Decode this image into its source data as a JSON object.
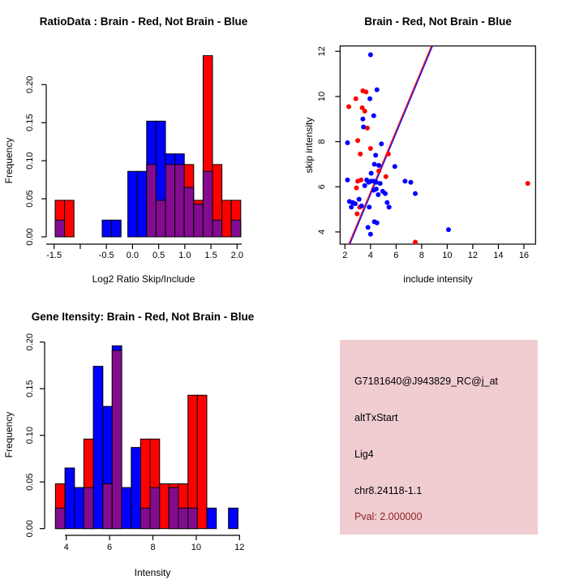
{
  "figure": {
    "background": "#ffffff"
  },
  "colors": {
    "brain_red": "#ff0000",
    "not_brain_blue": "#0000ff",
    "overlap_purple": "#830b8f",
    "axis_black": "#000000",
    "info_panel_pink": "#f1c6cb",
    "pval_dark_red": "#8b2323"
  },
  "chart_data": [
    {
      "id": "ratio_histogram",
      "type": "bar",
      "subtype": "overlaid-histogram",
      "title": "RatioData : Brain - Red, Not Brain - Blue",
      "xlabel": "Log2 Ratio Skip/Include",
      "ylabel": "Frequency",
      "xlim": [
        -1.6,
        2.1
      ],
      "ylim": [
        0,
        0.2
      ],
      "grid": false,
      "groups": [
        {
          "name": "Brain",
          "color": "#ff0000"
        },
        {
          "name": "Not Brain",
          "color": "#0000ff"
        },
        {
          "name": "Overlap",
          "color": "#830b8f"
        }
      ],
      "xticks": [
        {
          "v": -1.5,
          "t": "-1.5"
        },
        {
          "v": -1.0,
          "t": ""
        },
        {
          "v": -0.5,
          "t": "-0.5"
        },
        {
          "v": 0.0,
          "t": "0.0"
        },
        {
          "v": 0.5,
          "t": "0.5"
        },
        {
          "v": 1.0,
          "t": "1.0"
        },
        {
          "v": 1.5,
          "t": "1.5"
        },
        {
          "v": 2.0,
          "t": "2.0"
        }
      ],
      "yticks": [
        {
          "v": 0.0,
          "t": "0.00"
        },
        {
          "v": 0.05,
          "t": "0.05"
        },
        {
          "v": 0.1,
          "t": "0.10"
        },
        {
          "v": 0.15,
          "t": "0.15"
        },
        {
          "v": 0.2,
          "t": "0.20"
        }
      ],
      "bin_width": 0.18,
      "bars": [
        {
          "x": -1.48,
          "red": 0.048,
          "blue": 0.022
        },
        {
          "x": -1.3,
          "red": 0.048,
          "blue": 0
        },
        {
          "x": -0.58,
          "red": 0,
          "blue": 0.022
        },
        {
          "x": -0.4,
          "red": 0,
          "blue": 0.022
        },
        {
          "x": -0.09,
          "red": 0,
          "blue": 0.086
        },
        {
          "x": 0.09,
          "red": 0,
          "blue": 0.086
        },
        {
          "x": 0.27,
          "red": 0.095,
          "blue": 0.152
        },
        {
          "x": 0.45,
          "red": 0.048,
          "blue": 0.152
        },
        {
          "x": 0.63,
          "red": 0.095,
          "blue": 0.109
        },
        {
          "x": 0.81,
          "red": 0.095,
          "blue": 0.109
        },
        {
          "x": 0.99,
          "red": 0.095,
          "blue": 0.065
        },
        {
          "x": 1.17,
          "red": 0.048,
          "blue": 0.043
        },
        {
          "x": 1.35,
          "red": 0.238,
          "blue": 0.086
        },
        {
          "x": 1.53,
          "red": 0.095,
          "blue": 0.022
        },
        {
          "x": 1.71,
          "red": 0.048,
          "blue": 0
        },
        {
          "x": 1.89,
          "red": 0.048,
          "blue": 0.022
        }
      ]
    },
    {
      "id": "intensity_scatter",
      "type": "scatter",
      "title": "Brain - Red, Not Brain - Blue",
      "xlabel": "include intensity",
      "ylabel": "skip intensity",
      "xlim": [
        1.6,
        17.0
      ],
      "ylim": [
        3.45,
        12.25
      ],
      "grid": false,
      "xticks": [
        2,
        4,
        6,
        8,
        10,
        12,
        14,
        16
      ],
      "yticks": [
        4,
        6,
        8,
        10,
        12
      ],
      "series": [
        {
          "name": "Brain",
          "color": "#ff0000",
          "points": [
            [
              3.4,
              10.25
            ],
            [
              3.65,
              10.2
            ],
            [
              2.85,
              9.9
            ],
            [
              2.3,
              9.55
            ],
            [
              3.35,
              9.5
            ],
            [
              3.55,
              9.35
            ],
            [
              3.75,
              8.6
            ],
            [
              3.0,
              8.05
            ],
            [
              4.0,
              7.7
            ],
            [
              3.2,
              7.45
            ],
            [
              5.4,
              7.45
            ],
            [
              4.65,
              6.7
            ],
            [
              5.2,
              6.45
            ],
            [
              3.0,
              6.25
            ],
            [
              3.25,
              6.3
            ],
            [
              2.9,
              5.95
            ],
            [
              3.15,
              5.1
            ],
            [
              2.95,
              4.8
            ],
            [
              16.3,
              6.15
            ],
            [
              7.5,
              3.55
            ]
          ]
        },
        {
          "name": "Not Brain",
          "color": "#0000ff",
          "points": [
            [
              4.0,
              11.85
            ],
            [
              4.5,
              10.3
            ],
            [
              3.95,
              9.9
            ],
            [
              4.25,
              9.15
            ],
            [
              3.4,
              9.0
            ],
            [
              3.45,
              8.65
            ],
            [
              2.2,
              7.95
            ],
            [
              4.85,
              7.9
            ],
            [
              4.4,
              7.4
            ],
            [
              4.3,
              7.0
            ],
            [
              4.65,
              6.95
            ],
            [
              5.9,
              6.9
            ],
            [
              4.05,
              6.6
            ],
            [
              2.2,
              6.3
            ],
            [
              3.7,
              6.3
            ],
            [
              3.85,
              6.2
            ],
            [
              4.05,
              6.25
            ],
            [
              4.25,
              6.25
            ],
            [
              4.45,
              6.2
            ],
            [
              4.75,
              6.15
            ],
            [
              6.7,
              6.25
            ],
            [
              7.15,
              6.2
            ],
            [
              3.55,
              6.05
            ],
            [
              4.25,
              5.85
            ],
            [
              4.45,
              5.9
            ],
            [
              4.6,
              5.65
            ],
            [
              4.95,
              5.8
            ],
            [
              5.15,
              5.7
            ],
            [
              7.5,
              5.7
            ],
            [
              2.35,
              5.35
            ],
            [
              2.6,
              5.3
            ],
            [
              3.1,
              5.45
            ],
            [
              2.5,
              5.1
            ],
            [
              2.8,
              5.25
            ],
            [
              3.3,
              5.15
            ],
            [
              3.9,
              5.1
            ],
            [
              5.3,
              5.3
            ],
            [
              5.45,
              5.1
            ],
            [
              4.3,
              4.45
            ],
            [
              4.5,
              4.4
            ],
            [
              3.8,
              4.2
            ],
            [
              10.1,
              4.1
            ],
            [
              4.0,
              3.9
            ]
          ]
        }
      ],
      "fit_line": {
        "x1": 2.34,
        "y1": 3.46,
        "x2": 8.8,
        "y2": 12.23,
        "colors": [
          "#ff0000",
          "#0000ff"
        ]
      }
    },
    {
      "id": "gene_intensity_histogram",
      "type": "bar",
      "subtype": "overlaid-histogram",
      "title": "Gene Itensity: Brain - Red, Not Brain - Blue",
      "xlabel": "Intensity",
      "ylabel": "Frequency",
      "xlim": [
        3.4,
        12.1
      ],
      "ylim": [
        0,
        0.2
      ],
      "grid": false,
      "groups": [
        {
          "name": "Brain",
          "color": "#ff0000"
        },
        {
          "name": "Not Brain",
          "color": "#0000ff"
        },
        {
          "name": "Overlap",
          "color": "#830b8f"
        }
      ],
      "xticks": [
        {
          "v": 4,
          "t": "4"
        },
        {
          "v": 6,
          "t": "6"
        },
        {
          "v": 8,
          "t": "8"
        },
        {
          "v": 10,
          "t": "10"
        },
        {
          "v": 12,
          "t": "12"
        }
      ],
      "yticks": [
        {
          "v": 0.0,
          "t": "0.00"
        },
        {
          "v": 0.05,
          "t": "0.05"
        },
        {
          "v": 0.1,
          "t": "0.10"
        },
        {
          "v": 0.15,
          "t": "0.15"
        },
        {
          "v": 0.2,
          "t": "0.20"
        }
      ],
      "bin_width": 0.44,
      "bars": [
        {
          "x": 3.5,
          "red": 0.048,
          "blue": 0.022
        },
        {
          "x": 3.94,
          "red": 0,
          "blue": 0.065
        },
        {
          "x": 4.37,
          "red": 0,
          "blue": 0.044
        },
        {
          "x": 4.81,
          "red": 0.096,
          "blue": 0.044
        },
        {
          "x": 5.25,
          "red": 0,
          "blue": 0.174
        },
        {
          "x": 5.69,
          "red": 0.048,
          "blue": 0.131
        },
        {
          "x": 6.12,
          "red": 0.191,
          "blue": 0.196
        },
        {
          "x": 6.56,
          "red": 0,
          "blue": 0.044
        },
        {
          "x": 7.0,
          "red": 0,
          "blue": 0.087
        },
        {
          "x": 7.43,
          "red": 0.096,
          "blue": 0.022
        },
        {
          "x": 7.87,
          "red": 0.096,
          "blue": 0.044
        },
        {
          "x": 8.31,
          "red": 0.048,
          "blue": 0
        },
        {
          "x": 8.74,
          "red": 0.048,
          "blue": 0.044
        },
        {
          "x": 9.18,
          "red": 0.048,
          "blue": 0.022
        },
        {
          "x": 9.62,
          "red": 0.143,
          "blue": 0.022
        },
        {
          "x": 10.05,
          "red": 0.143,
          "blue": 0
        },
        {
          "x": 10.49,
          "red": 0,
          "blue": 0.022
        },
        {
          "x": 11.49,
          "red": 0,
          "blue": 0.022
        }
      ]
    }
  ],
  "info_panel": {
    "bg": "#f1c6cb",
    "lines": [
      {
        "text": "G7181640@J943829_RC@j_at",
        "color": "#000000"
      },
      {
        "text": "altTxStart",
        "color": "#000000"
      },
      {
        "text": "Lig4",
        "color": "#000000"
      },
      {
        "text": "chr8.24118-1.1",
        "color": "#000000"
      },
      {
        "text": "Pval: 2.000000",
        "color": "#8b2323"
      }
    ]
  }
}
